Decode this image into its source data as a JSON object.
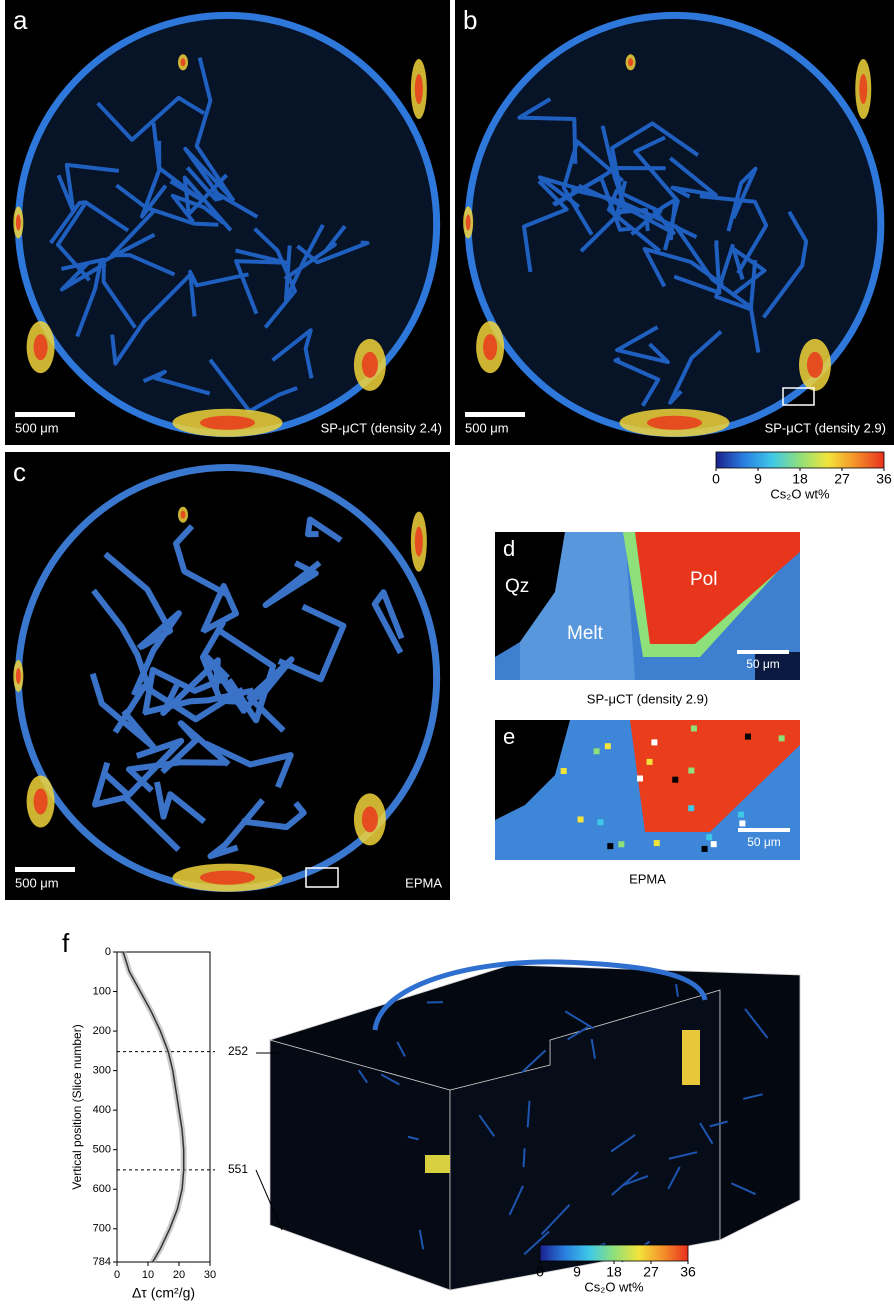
{
  "panels": {
    "a": {
      "label": "a",
      "scale_bar": "500 μm",
      "caption": "SP-μCT (density 2.4)"
    },
    "b": {
      "label": "b",
      "scale_bar": "500 μm",
      "caption": "SP-μCT (density 2.9)"
    },
    "c": {
      "label": "c",
      "scale_bar": "500 μm",
      "caption": "EPMA"
    },
    "d": {
      "label": "d",
      "regions": [
        "Qz",
        "Melt",
        "Pol"
      ],
      "scale_bar": "50 μm",
      "caption": "SP-μCT (density 2.9)"
    },
    "e": {
      "label": "e",
      "scale_bar": "50 μm",
      "caption": "EPMA"
    },
    "f": {
      "label": "f"
    }
  },
  "colorbar": {
    "lim": [
      0,
      36
    ],
    "ticks": [
      0,
      9,
      18,
      27,
      36
    ],
    "label": "Cs₂O wt%",
    "colors": [
      "#1a1f8c",
      "#2a7fe0",
      "#3ec8e8",
      "#8fe07a",
      "#f2e43a",
      "#f5902a",
      "#e8301e"
    ]
  },
  "chart_data": {
    "type": "line",
    "xlabel": "Δτ (cm²/g)",
    "ylabel": "Vertical position (Slice number)",
    "positions": [
      0,
      50,
      100,
      150,
      200,
      252,
      300,
      350,
      400,
      450,
      500,
      551,
      600,
      650,
      700,
      750,
      784
    ],
    "values": [
      2,
      4,
      7.5,
      11,
      14,
      16.5,
      18,
      19,
      20,
      21,
      21.5,
      21.5,
      21,
      19.5,
      17,
      14,
      11.5
    ],
    "color": "#333333",
    "xlim": [
      0,
      30
    ],
    "xticks": [
      0,
      10,
      20,
      30
    ],
    "ylim": [
      0,
      784
    ],
    "yticks": [
      0,
      100,
      200,
      300,
      400,
      500,
      600,
      700,
      784
    ],
    "y_inverted": true,
    "reference_lines": [
      252,
      551
    ]
  }
}
